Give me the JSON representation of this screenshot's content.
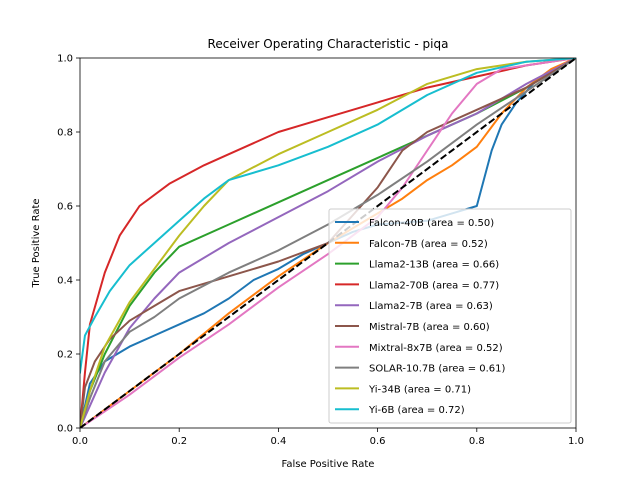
{
  "chart_data": {
    "type": "line",
    "title": "Receiver Operating Characteristic - piqa",
    "xlabel": "False Positive Rate",
    "ylabel": "True Positive Rate",
    "xlim": [
      0,
      1
    ],
    "ylim": [
      0,
      1
    ],
    "xticks": [
      "0.0",
      "0.2",
      "0.4",
      "0.6",
      "0.8",
      "1.0"
    ],
    "yticks": [
      "0.0",
      "0.2",
      "0.4",
      "0.6",
      "0.8",
      "1.0"
    ],
    "grid": false,
    "legend_position": "lower-right",
    "diagonal_reference": {
      "color": "#000000",
      "style": "dashed"
    },
    "series": [
      {
        "name": "Falcon-40B (area = 0.50)",
        "color": "#1f77b4",
        "points": [
          [
            0,
            0
          ],
          [
            0.01,
            0.06
          ],
          [
            0.02,
            0.12
          ],
          [
            0.05,
            0.18
          ],
          [
            0.1,
            0.22
          ],
          [
            0.15,
            0.25
          ],
          [
            0.2,
            0.28
          ],
          [
            0.25,
            0.31
          ],
          [
            0.3,
            0.35
          ],
          [
            0.35,
            0.4
          ],
          [
            0.4,
            0.43
          ],
          [
            0.45,
            0.47
          ],
          [
            0.5,
            0.5
          ],
          [
            0.55,
            0.53
          ],
          [
            0.6,
            0.55
          ],
          [
            0.7,
            0.56
          ],
          [
            0.75,
            0.58
          ],
          [
            0.8,
            0.6
          ],
          [
            0.81,
            0.65
          ],
          [
            0.83,
            0.75
          ],
          [
            0.85,
            0.82
          ],
          [
            0.88,
            0.88
          ],
          [
            0.92,
            0.94
          ],
          [
            1,
            1
          ]
        ]
      },
      {
        "name": "Falcon-7B (area = 0.52)",
        "color": "#ff7f0e",
        "points": [
          [
            0,
            0
          ],
          [
            0.1,
            0.1
          ],
          [
            0.2,
            0.2
          ],
          [
            0.3,
            0.31
          ],
          [
            0.4,
            0.41
          ],
          [
            0.5,
            0.5
          ],
          [
            0.6,
            0.58
          ],
          [
            0.65,
            0.62
          ],
          [
            0.7,
            0.67
          ],
          [
            0.75,
            0.71
          ],
          [
            0.8,
            0.76
          ],
          [
            0.85,
            0.85
          ],
          [
            0.9,
            0.92
          ],
          [
            0.95,
            0.97
          ],
          [
            1,
            1
          ]
        ]
      },
      {
        "name": "Llama2-13B (area = 0.66)",
        "color": "#2ca02c",
        "points": [
          [
            0,
            0
          ],
          [
            0.02,
            0.1
          ],
          [
            0.05,
            0.2
          ],
          [
            0.1,
            0.33
          ],
          [
            0.15,
            0.42
          ],
          [
            0.2,
            0.49
          ],
          [
            0.3,
            0.55
          ],
          [
            0.4,
            0.61
          ],
          [
            0.5,
            0.67
          ],
          [
            0.6,
            0.73
          ],
          [
            0.7,
            0.79
          ],
          [
            0.8,
            0.85
          ],
          [
            0.9,
            0.92
          ],
          [
            0.95,
            0.96
          ],
          [
            1,
            1
          ]
        ]
      },
      {
        "name": "Llama2-70B (area = 0.77)",
        "color": "#d62728",
        "points": [
          [
            0,
            0
          ],
          [
            0.01,
            0.15
          ],
          [
            0.02,
            0.28
          ],
          [
            0.05,
            0.42
          ],
          [
            0.08,
            0.52
          ],
          [
            0.12,
            0.6
          ],
          [
            0.18,
            0.66
          ],
          [
            0.25,
            0.71
          ],
          [
            0.3,
            0.74
          ],
          [
            0.4,
            0.8
          ],
          [
            0.5,
            0.84
          ],
          [
            0.6,
            0.88
          ],
          [
            0.7,
            0.92
          ],
          [
            0.8,
            0.95
          ],
          [
            0.9,
            0.98
          ],
          [
            1,
            1
          ]
        ]
      },
      {
        "name": "Llama2-7B (area = 0.63)",
        "color": "#9467bd",
        "points": [
          [
            0,
            0
          ],
          [
            0.02,
            0.06
          ],
          [
            0.05,
            0.15
          ],
          [
            0.1,
            0.27
          ],
          [
            0.15,
            0.35
          ],
          [
            0.2,
            0.42
          ],
          [
            0.3,
            0.5
          ],
          [
            0.4,
            0.57
          ],
          [
            0.5,
            0.64
          ],
          [
            0.6,
            0.72
          ],
          [
            0.7,
            0.79
          ],
          [
            0.8,
            0.85
          ],
          [
            0.9,
            0.93
          ],
          [
            1,
            1
          ]
        ]
      },
      {
        "name": "Mistral-7B (area = 0.60)",
        "color": "#8c564b",
        "points": [
          [
            0,
            0
          ],
          [
            0.01,
            0.11
          ],
          [
            0.03,
            0.18
          ],
          [
            0.06,
            0.24
          ],
          [
            0.1,
            0.29
          ],
          [
            0.15,
            0.33
          ],
          [
            0.2,
            0.37
          ],
          [
            0.3,
            0.41
          ],
          [
            0.4,
            0.45
          ],
          [
            0.5,
            0.5
          ],
          [
            0.6,
            0.65
          ],
          [
            0.65,
            0.75
          ],
          [
            0.7,
            0.8
          ],
          [
            0.8,
            0.86
          ],
          [
            0.9,
            0.92
          ],
          [
            1,
            1
          ]
        ]
      },
      {
        "name": "Mixtral-8x7B (area = 0.52)",
        "color": "#e377c2",
        "points": [
          [
            0,
            0
          ],
          [
            0.1,
            0.09
          ],
          [
            0.2,
            0.19
          ],
          [
            0.3,
            0.28
          ],
          [
            0.4,
            0.38
          ],
          [
            0.5,
            0.47
          ],
          [
            0.6,
            0.57
          ],
          [
            0.65,
            0.65
          ],
          [
            0.7,
            0.75
          ],
          [
            0.75,
            0.85
          ],
          [
            0.8,
            0.93
          ],
          [
            0.85,
            0.97
          ],
          [
            1,
            1
          ]
        ]
      },
      {
        "name": "SOLAR-10.7B (area = 0.61)",
        "color": "#7f7f7f",
        "points": [
          [
            0,
            0
          ],
          [
            0.02,
            0.08
          ],
          [
            0.05,
            0.18
          ],
          [
            0.1,
            0.26
          ],
          [
            0.15,
            0.3
          ],
          [
            0.2,
            0.35
          ],
          [
            0.3,
            0.42
          ],
          [
            0.4,
            0.48
          ],
          [
            0.5,
            0.55
          ],
          [
            0.6,
            0.63
          ],
          [
            0.7,
            0.72
          ],
          [
            0.8,
            0.82
          ],
          [
            0.9,
            0.91
          ],
          [
            1,
            1
          ]
        ]
      },
      {
        "name": "Yi-34B (area = 0.71)",
        "color": "#bcbd22",
        "points": [
          [
            0,
            0
          ],
          [
            0.02,
            0.1
          ],
          [
            0.05,
            0.22
          ],
          [
            0.1,
            0.34
          ],
          [
            0.15,
            0.43
          ],
          [
            0.2,
            0.52
          ],
          [
            0.25,
            0.6
          ],
          [
            0.3,
            0.67
          ],
          [
            0.4,
            0.74
          ],
          [
            0.5,
            0.8
          ],
          [
            0.6,
            0.86
          ],
          [
            0.7,
            0.93
          ],
          [
            0.8,
            0.97
          ],
          [
            0.9,
            0.99
          ],
          [
            1,
            1
          ]
        ]
      },
      {
        "name": "Yi-6B (area = 0.72)",
        "color": "#17becf",
        "points": [
          [
            0,
            0.15
          ],
          [
            0.01,
            0.25
          ],
          [
            0.03,
            0.3
          ],
          [
            0.06,
            0.37
          ],
          [
            0.1,
            0.44
          ],
          [
            0.15,
            0.5
          ],
          [
            0.2,
            0.56
          ],
          [
            0.25,
            0.62
          ],
          [
            0.3,
            0.67
          ],
          [
            0.4,
            0.71
          ],
          [
            0.5,
            0.76
          ],
          [
            0.6,
            0.82
          ],
          [
            0.7,
            0.9
          ],
          [
            0.8,
            0.96
          ],
          [
            0.9,
            0.99
          ],
          [
            1,
            1
          ]
        ]
      }
    ]
  }
}
